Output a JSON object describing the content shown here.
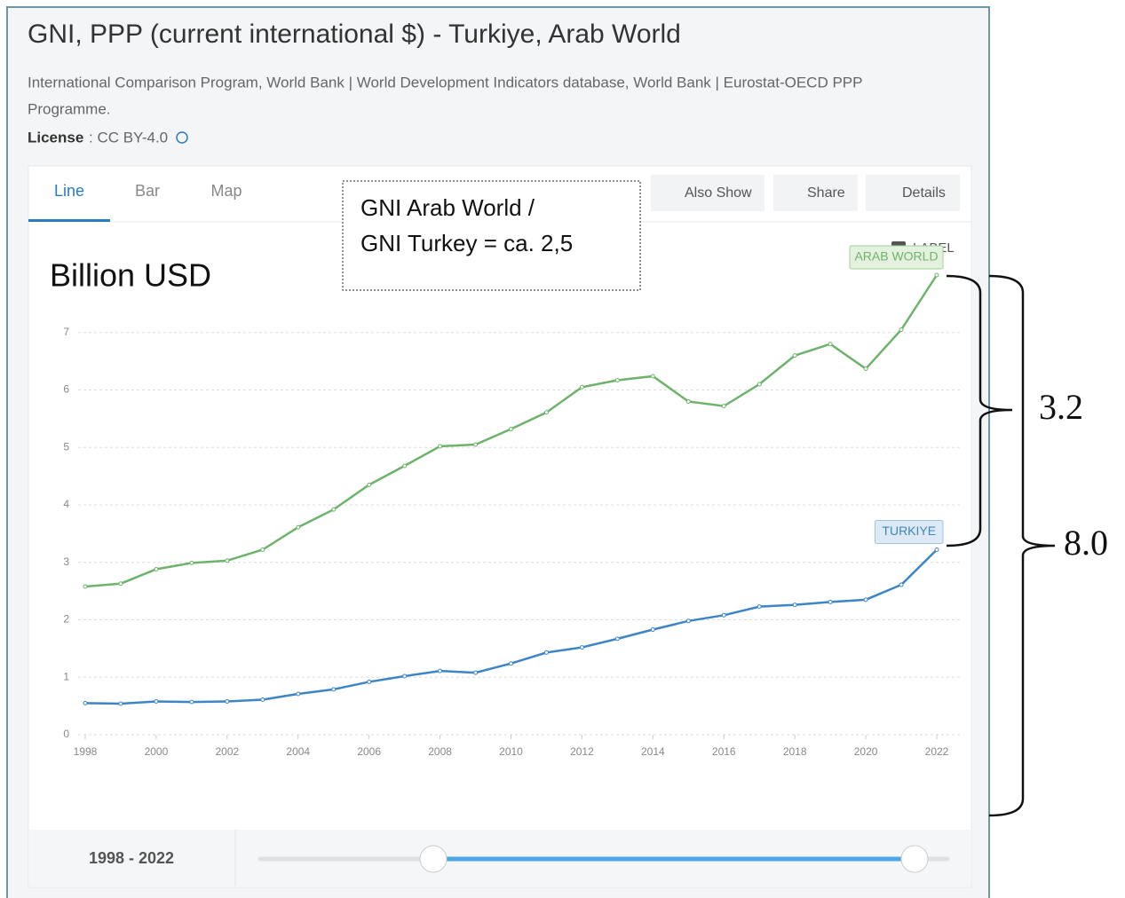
{
  "ui": {
    "title": "GNI, PPP (current international $) - Turkiye, Arab World",
    "source_line1": "International Comparison Program, World Bank | World Development Indicators database, World Bank | Eurostat-OECD PPP",
    "source_line2": "Programme.",
    "license_key": "License",
    "license_value": ": CC BY-4.0",
    "tabs": [
      "Line",
      "Bar",
      "Map"
    ],
    "buttons": [
      "Also Show",
      "Share",
      "Details"
    ],
    "label_toggle": "LABEL",
    "range_label": "1998 - 2022"
  },
  "chart_data": {
    "type": "line",
    "annotations": {
      "unit": "Billion USD",
      "note_line1": "GNI Arab World /",
      "note_line2": "GNI Turkey = ca. 2,5",
      "bracket_small": "3.2",
      "bracket_large": "8.0"
    },
    "x": [
      1998,
      1999,
      2000,
      2001,
      2002,
      2003,
      2004,
      2005,
      2006,
      2007,
      2008,
      2009,
      2010,
      2011,
      2012,
      2013,
      2014,
      2015,
      2016,
      2017,
      2018,
      2019,
      2020,
      2021,
      2022
    ],
    "series": [
      {
        "name": "ARAB WORLD",
        "color": "#6db36b",
        "values": [
          2.58,
          2.63,
          2.88,
          2.99,
          3.03,
          3.22,
          3.61,
          3.92,
          4.35,
          4.68,
          5.02,
          5.05,
          5.32,
          5.61,
          6.05,
          6.17,
          6.24,
          5.8,
          5.72,
          6.1,
          6.6,
          6.8,
          6.37,
          7.05,
          8.0
        ]
      },
      {
        "name": "TURKIYE",
        "color": "#3d85c6",
        "values": [
          0.55,
          0.54,
          0.58,
          0.57,
          0.58,
          0.61,
          0.71,
          0.79,
          0.92,
          1.02,
          1.11,
          1.08,
          1.24,
          1.43,
          1.52,
          1.67,
          1.83,
          1.98,
          2.08,
          2.23,
          2.26,
          2.31,
          2.35,
          2.61,
          3.22
        ]
      }
    ],
    "xlim": [
      1998,
      2022
    ],
    "xticks": [
      1998,
      2000,
      2002,
      2004,
      2006,
      2008,
      2010,
      2012,
      2014,
      2016,
      2018,
      2020,
      2022
    ],
    "ylim": [
      0,
      8
    ],
    "yticks": [
      0,
      1,
      2,
      3,
      4,
      5,
      6,
      7
    ],
    "grid": true
  }
}
